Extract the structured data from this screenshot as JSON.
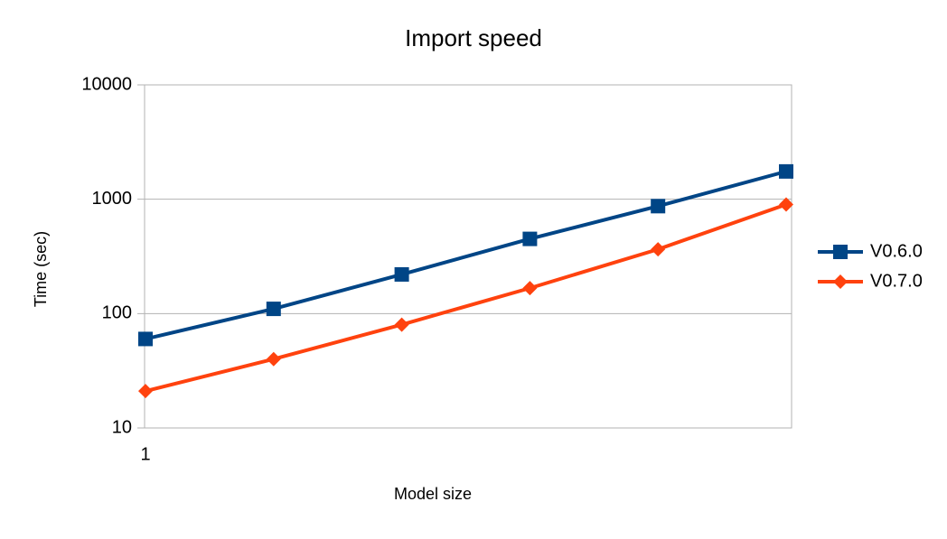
{
  "chart_data": {
    "type": "line",
    "title": "Import speed",
    "x_label": "Model size",
    "y_label": "Time (sec)",
    "categories": [
      "1",
      null,
      null,
      null,
      null,
      null
    ],
    "series": [
      {
        "name": "V0.6.0",
        "color": "#004586",
        "marker": "square",
        "values": [
          60,
          110,
          220,
          450,
          870,
          1750
        ]
      },
      {
        "name": "V0.7.0",
        "color": "#ff420e",
        "marker": "diamond",
        "values": [
          21,
          40,
          80,
          167,
          365,
          900
        ]
      }
    ],
    "ylim": [
      10,
      10000
    ],
    "yticks": [
      10,
      100,
      1000,
      10000
    ],
    "log_y": true,
    "grid": true,
    "legend": "right"
  }
}
